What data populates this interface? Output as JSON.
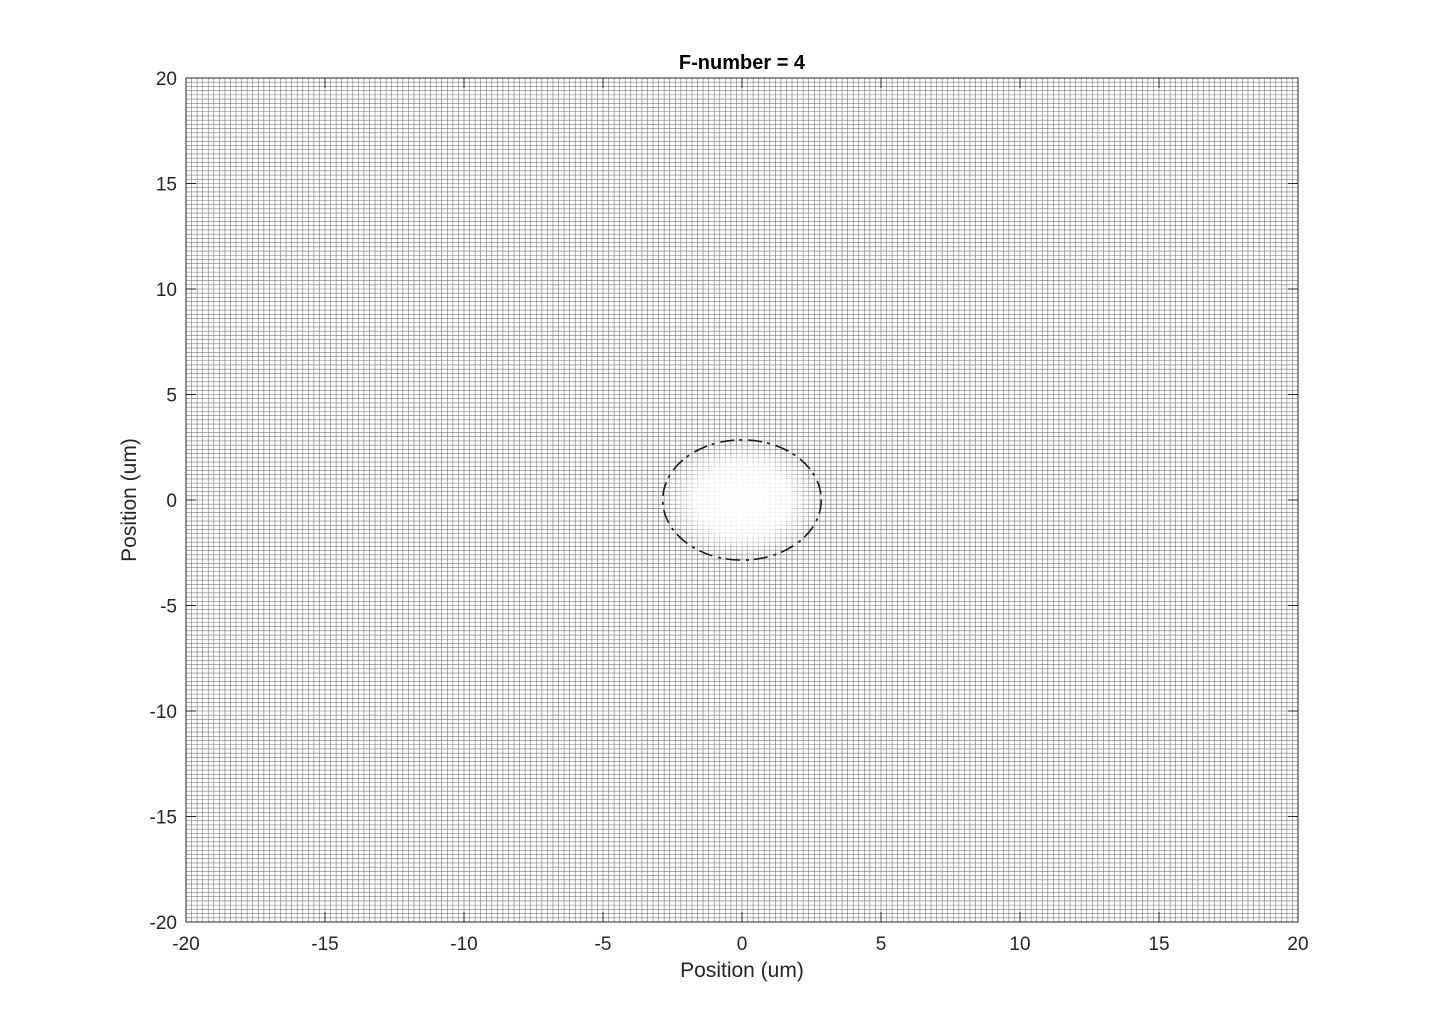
{
  "chart_data": {
    "type": "surface",
    "title": "F-number = 4",
    "xlabel": "Position (um)",
    "ylabel": "Position (um)",
    "xlim": [
      -20,
      20
    ],
    "ylim": [
      -20,
      20
    ],
    "xticks": [
      -20,
      -15,
      -10,
      -5,
      0,
      5,
      10,
      15,
      20
    ],
    "yticks": [
      -20,
      -15,
      -10,
      -5,
      0,
      5,
      10,
      15,
      20
    ],
    "xtick_labels": [
      "-20",
      "-15",
      "-10",
      "-5",
      "0",
      "5",
      "10",
      "15",
      "20"
    ],
    "ytick_labels": [
      "-20",
      "-15",
      "-10",
      "-5",
      "0",
      "5",
      "10",
      "15",
      "20"
    ],
    "mesh_spacing": 0.2,
    "grid": true,
    "airy_disk": {
      "center": [
        0,
        0
      ],
      "first_dark_ring_radius": 2.85
    },
    "colors": {
      "mesh": "#7a7a7a",
      "ring": "#1a1a1a",
      "background": "#ffffff",
      "text": "#262626"
    }
  }
}
